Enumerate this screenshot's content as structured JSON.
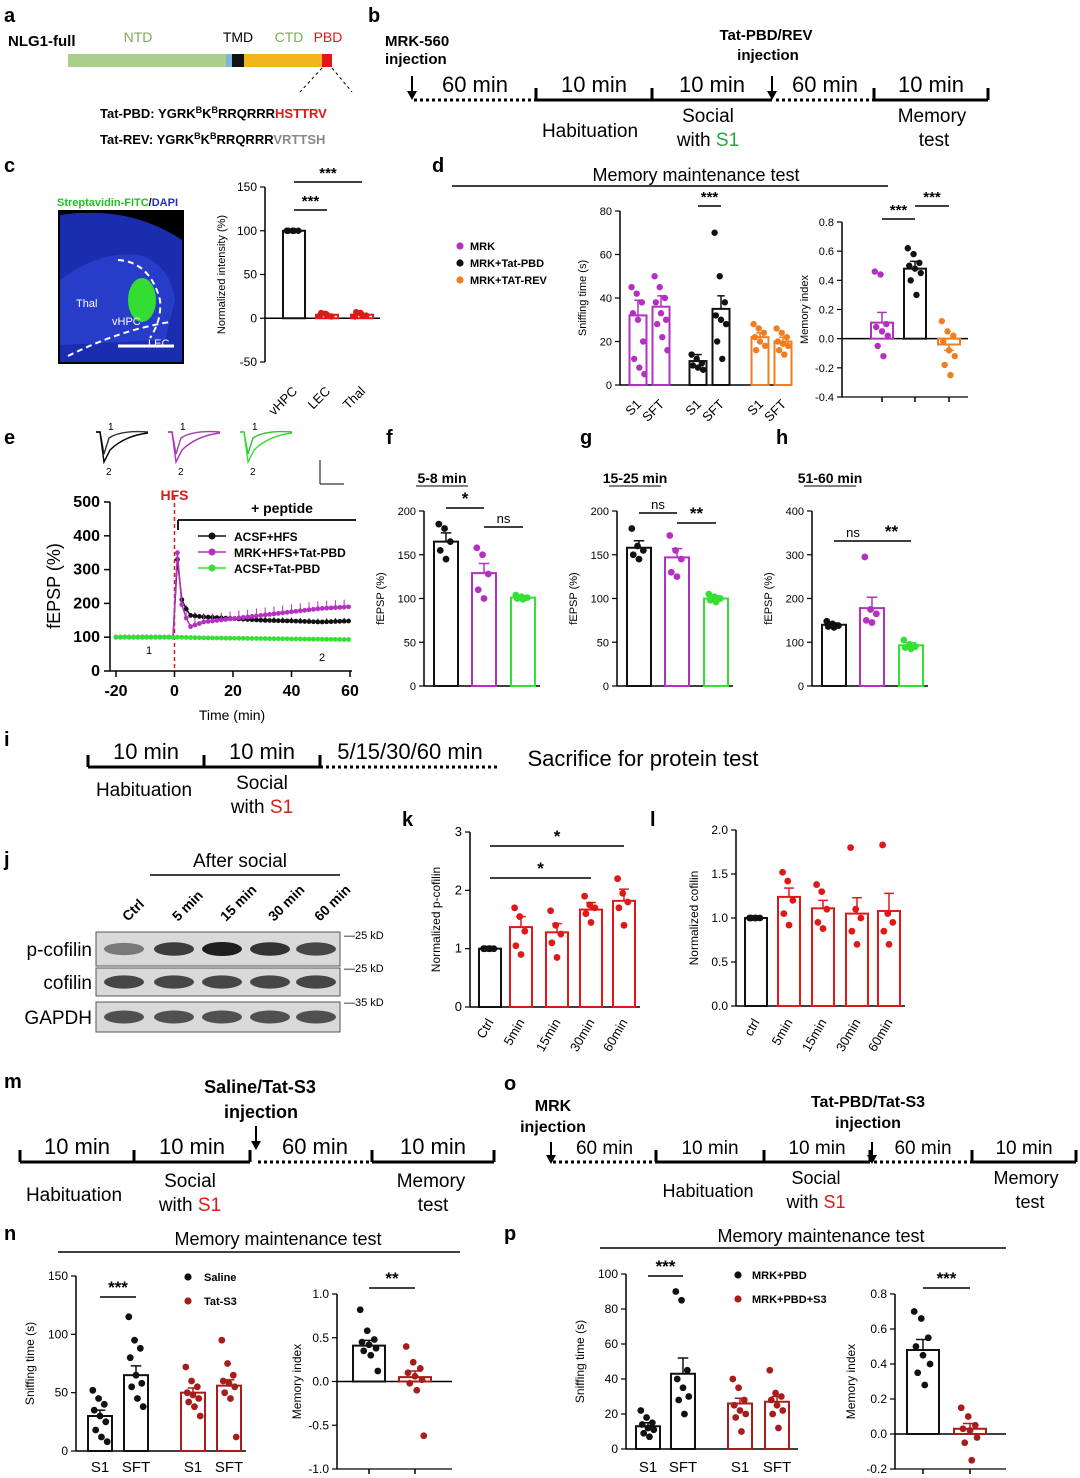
{
  "colors": {
    "black": "#111111",
    "magenta": "#b330c0",
    "orange": "#f07d20",
    "green": "#33e033",
    "red": "#e01818",
    "darkred": "#a81c1c",
    "ntd": "#a9cf8a",
    "tmd_a": "#7fb6dd",
    "tmd_b": "#111111",
    "ctd": "#f2b41e",
    "pbd": "#e3151b",
    "hippo": "#33dd33",
    "dapi": "#1c2fb8",
    "grey": "#888888"
  },
  "panel_a": {
    "letter": "a",
    "construct": "NLG1-full",
    "domains": [
      "NTD",
      "TMD",
      "CTD",
      "PBD"
    ],
    "tat_pbd": {
      "label": "Tat-PBD:",
      "seq_black": "YGRK",
      "sup1": "B",
      "seq_black2": "K",
      "sup2": "B",
      "seq_black3": "RRQRRR",
      "seq_color": "HSTTRV"
    },
    "tat_rev": {
      "label": "Tat-REV:",
      "seq_black": "YGRK",
      "sup1": "B",
      "seq_black2": "K",
      "sup2": "B",
      "seq_black3": "RRQRRR",
      "seq_color": "VRTTSH"
    }
  },
  "panel_b": {
    "letter": "b",
    "inj1": [
      "MRK-560",
      "injection"
    ],
    "inj2": [
      "Tat-PBD/REV",
      "injection"
    ],
    "durations": [
      "60 min",
      "10 min",
      "10 min",
      "60 min",
      "10 min"
    ],
    "habituation": "Habituation",
    "social": "Social",
    "with": "with ",
    "s1": "S1",
    "memory": "Memory",
    "test": "test"
  },
  "panel_c": {
    "letter": "c",
    "stain_green": "Streptavidin-FITC",
    "stain_slash": "/",
    "stain_blue": "DAPI",
    "regions": [
      "Thal",
      "vHPC",
      "LEC"
    ],
    "chart_data": {
      "type": "bar",
      "categories": [
        "vHPC",
        "LEC",
        "Thal"
      ],
      "values": [
        100,
        4,
        4
      ],
      "points": [
        [
          100,
          100,
          100,
          100,
          100
        ],
        [
          3,
          5,
          2,
          6,
          4
        ],
        [
          2,
          6,
          3,
          7,
          4
        ]
      ],
      "ylabel": "Normalized intensity (%)",
      "ylim": [
        -50,
        150
      ],
      "yticks": [
        "-50",
        "0",
        "50",
        "100",
        "150"
      ],
      "annotations": [
        "***",
        "***"
      ]
    }
  },
  "panel_d": {
    "letter": "d",
    "title": "Memory maintenance test",
    "legend": [
      "MRK",
      "MRK+Tat-PBD",
      "MRK+TAT-REV"
    ],
    "chart_data": [
      {
        "type": "bar",
        "ylabel": "Sniffing time (s)",
        "ylim": [
          0,
          80
        ],
        "yticks": [
          "0",
          "20",
          "40",
          "60",
          "80"
        ],
        "categories": [
          "S1",
          "SFT",
          "S1",
          "SFT",
          "S1",
          "SFT"
        ],
        "values": [
          32,
          36,
          11,
          35,
          22,
          20
        ],
        "errors": [
          7,
          5,
          3,
          6,
          2,
          2
        ],
        "points": [
          [
            45,
            42,
            38,
            33,
            30,
            20,
            12,
            8,
            5
          ],
          [
            50,
            45,
            40,
            38,
            33,
            30,
            28,
            22,
            16
          ],
          [
            14,
            12,
            10,
            9,
            8,
            7
          ],
          [
            70,
            50,
            38,
            32,
            30,
            28,
            20,
            12
          ],
          [
            28,
            26,
            24,
            22,
            20,
            18,
            16
          ],
          [
            26,
            24,
            22,
            20,
            19,
            18,
            16,
            14
          ]
        ],
        "annotation": "***"
      },
      {
        "type": "bar",
        "ylabel": "Memory index",
        "ylim": [
          -0.4,
          0.8
        ],
        "yticks": [
          "-0.4",
          "-0.2",
          "0.0",
          "0.2",
          "0.4",
          "0.6",
          "0.8"
        ],
        "categories": [
          "MRK",
          "MRK+Tat-PBD",
          "MRK+TAT-REV"
        ],
        "values": [
          0.11,
          0.48,
          -0.04
        ],
        "errors": [
          0.07,
          0.05,
          0.04
        ],
        "points": [
          [
            0.46,
            0.44,
            0.1,
            0.08,
            0.05,
            0.02,
            -0.05,
            -0.12
          ],
          [
            0.62,
            0.58,
            0.52,
            0.5,
            0.48,
            0.45,
            0.4,
            0.3
          ],
          [
            0.12,
            0.05,
            0.02,
            -0.02,
            -0.08,
            -0.12,
            -0.18,
            -0.25
          ]
        ],
        "annotations": [
          "***",
          "***"
        ]
      }
    ]
  },
  "panel_e": {
    "letter": "e",
    "peptide": "+ peptide",
    "hfs": "HFS",
    "trace_labels": [
      "1",
      "2"
    ],
    "chart_data": {
      "type": "line",
      "xlabel": "Time (min)",
      "ylabel": "fEPSP (%)",
      "xlim": [
        -20,
        60
      ],
      "ylim": [
        0,
        500
      ],
      "xticks": [
        "-20",
        "0",
        "20",
        "40",
        "60"
      ],
      "yticks": [
        "0",
        "100",
        "200",
        "300",
        "400",
        "500"
      ],
      "series": [
        {
          "name": "ACSF+HFS",
          "x": [
            -20,
            -10,
            0,
            1,
            2,
            5,
            10,
            20,
            30,
            40,
            50,
            60
          ],
          "y": [
            100,
            100,
            100,
            330,
            220,
            165,
            160,
            155,
            150,
            148,
            145,
            148
          ]
        },
        {
          "name": "MRK+HFS+Tat-PBD",
          "x": [
            -20,
            -10,
            0,
            1,
            2,
            5,
            10,
            20,
            30,
            40,
            50,
            60
          ],
          "y": [
            100,
            100,
            100,
            350,
            210,
            130,
            145,
            155,
            165,
            175,
            185,
            190
          ]
        },
        {
          "name": "ACSF+Tat-PBD",
          "x": [
            -20,
            -10,
            0,
            1,
            2,
            5,
            10,
            20,
            30,
            40,
            50,
            60
          ],
          "y": [
            100,
            100,
            100,
            100,
            100,
            99,
            98,
            97,
            96,
            95,
            94,
            93
          ]
        }
      ]
    }
  },
  "panel_f": {
    "letter": "f",
    "title": "5-8 min",
    "chart_data": {
      "type": "bar",
      "ylabel": "fEPSP (%)",
      "ylim": [
        0,
        200
      ],
      "yticks": [
        "0",
        "50",
        "100",
        "150",
        "200"
      ],
      "values": [
        165,
        129,
        101
      ],
      "errors": [
        10,
        11,
        2
      ],
      "points": [
        [
          185,
          180,
          165,
          155,
          145
        ],
        [
          158,
          150,
          128,
          110,
          100
        ],
        [
          104,
          102,
          101,
          100,
          99
        ]
      ],
      "annotations": [
        "*",
        "ns"
      ]
    }
  },
  "panel_g": {
    "letter": "g",
    "title": "15-25 min",
    "chart_data": {
      "type": "bar",
      "ylabel": "fEPSP (%)",
      "ylim": [
        0,
        200
      ],
      "yticks": [
        "0",
        "50",
        "100",
        "150",
        "200"
      ],
      "values": [
        158,
        147,
        100
      ],
      "errors": [
        8,
        10,
        3
      ],
      "points": [
        [
          180,
          160,
          155,
          150,
          145
        ],
        [
          172,
          155,
          145,
          130,
          125
        ],
        [
          105,
          102,
          100,
          98,
          96
        ]
      ],
      "annotations": [
        "ns",
        "**"
      ]
    }
  },
  "panel_h": {
    "letter": "h",
    "title": "51-60 min",
    "chart_data": {
      "type": "bar",
      "ylabel": "fEPSP (%)",
      "ylim": [
        0,
        400
      ],
      "yticks": [
        "0",
        "100",
        "200",
        "300",
        "400"
      ],
      "values": [
        140,
        178,
        93
      ],
      "errors": [
        4,
        25,
        6
      ],
      "points": [
        [
          148,
          142,
          138,
          136,
          134
        ],
        [
          295,
          175,
          165,
          150,
          145
        ],
        [
          105,
          95,
          90,
          88,
          85
        ]
      ],
      "annotations": [
        "ns",
        "**"
      ]
    }
  },
  "panel_i": {
    "letter": "i",
    "durations": [
      "10 min",
      "10 min",
      "5/15/30/60 min"
    ],
    "habituation": "Habituation",
    "social": "Social",
    "with": "with ",
    "s1": "S1",
    "sacrifice": "Sacrifice for protein test"
  },
  "panel_j": {
    "letter": "j",
    "after_social": "After social",
    "lanes": [
      "Ctrl",
      "5 min",
      "15 min",
      "30 min",
      "60 min"
    ],
    "rows": [
      "p-cofilin",
      "cofilin",
      "GAPDH"
    ],
    "markers": [
      "—25 kD",
      "—25 kD",
      "—35 kD"
    ],
    "intensity": {
      "p-cofilin": [
        0.55,
        0.85,
        1.0,
        0.9,
        0.8
      ],
      "cofilin": [
        0.8,
        0.8,
        0.8,
        0.8,
        0.8
      ],
      "GAPDH": [
        0.75,
        0.75,
        0.75,
        0.75,
        0.75
      ]
    }
  },
  "panel_k": {
    "letter": "k",
    "chart_data": {
      "type": "bar",
      "ylabel": "Normalized p-cofilin",
      "ylim": [
        0,
        3
      ],
      "yticks": [
        "0",
        "1",
        "2",
        "3"
      ],
      "categories": [
        "Ctrl",
        "5min",
        "15min",
        "30min",
        "60min"
      ],
      "values": [
        1.0,
        1.37,
        1.28,
        1.67,
        1.82
      ],
      "errors": [
        0.0,
        0.18,
        0.15,
        0.12,
        0.2
      ],
      "points": [
        [
          1,
          1,
          1,
          1,
          1
        ],
        [
          1.7,
          1.55,
          1.3,
          1.05,
          0.9
        ],
        [
          1.65,
          1.4,
          1.25,
          1.1,
          0.85
        ],
        [
          1.9,
          1.75,
          1.7,
          1.6,
          1.45
        ],
        [
          2.2,
          1.95,
          1.8,
          1.7,
          1.4
        ]
      ],
      "annotations": [
        "*",
        "*"
      ]
    }
  },
  "panel_l": {
    "letter": "l",
    "chart_data": {
      "type": "bar",
      "ylabel": "Normalized cofilin",
      "ylim": [
        0,
        2.0
      ],
      "yticks": [
        "0.0",
        "0.5",
        "1.0",
        "1.5",
        "2.0"
      ],
      "categories": [
        "ctrl",
        "5min",
        "15min",
        "30min",
        "60min"
      ],
      "values": [
        1.0,
        1.24,
        1.11,
        1.05,
        1.08
      ],
      "errors": [
        0.0,
        0.1,
        0.09,
        0.18,
        0.2
      ],
      "points": [
        [
          1,
          1,
          1,
          1,
          1
        ],
        [
          1.52,
          1.42,
          1.2,
          1.05,
          0.92
        ],
        [
          1.38,
          1.3,
          1.1,
          0.95,
          0.88
        ],
        [
          1.8,
          1.1,
          1.0,
          0.85,
          0.7
        ],
        [
          1.83,
          1.05,
          0.95,
          0.85,
          0.7
        ]
      ]
    }
  },
  "panel_m": {
    "letter": "m",
    "inj": [
      "Saline/Tat-S3",
      "injection"
    ],
    "durations": [
      "10 min",
      "10 min",
      "60 min",
      "10 min"
    ],
    "habituation": "Habituation",
    "social": "Social",
    "with": "with ",
    "s1": "S1",
    "memory": "Memory",
    "test": "test"
  },
  "panel_n": {
    "letter": "n",
    "title": "Memory maintenance test",
    "legend": [
      "Saline",
      "Tat-S3"
    ],
    "chart_data": [
      {
        "type": "bar",
        "ylabel": "Sniffing time (s)",
        "ylim": [
          0,
          150
        ],
        "yticks": [
          "0",
          "50",
          "100",
          "150"
        ],
        "categories": [
          "S1",
          "SFT",
          "S1",
          "SFT"
        ],
        "values": [
          30,
          65,
          50,
          56
        ],
        "errors": [
          5,
          8,
          4,
          5
        ],
        "points": [
          [
            52,
            45,
            40,
            35,
            30,
            25,
            18,
            12,
            8
          ],
          [
            115,
            95,
            88,
            80,
            65,
            58,
            55,
            45,
            38
          ],
          [
            72,
            60,
            55,
            50,
            48,
            45,
            42,
            38,
            30
          ],
          [
            95,
            75,
            65,
            60,
            58,
            55,
            50,
            45,
            12
          ]
        ],
        "annotation": "***"
      },
      {
        "type": "bar",
        "ylabel": "Memory index",
        "ylim": [
          -1.0,
          1.0
        ],
        "yticks": [
          "-1.0",
          "-0.5",
          "0.0",
          "0.5",
          "1.0"
        ],
        "categories": [
          "Saline",
          "Tat-S3"
        ],
        "values": [
          0.41,
          0.05
        ],
        "errors": [
          0.06,
          0.07
        ],
        "points": [
          [
            0.82,
            0.58,
            0.48,
            0.45,
            0.42,
            0.38,
            0.35,
            0.3,
            0.12
          ],
          [
            0.4,
            0.22,
            0.15,
            0.1,
            0.06,
            0.02,
            -0.02,
            -0.1,
            -0.62
          ]
        ],
        "annotation": "**"
      }
    ]
  },
  "panel_o": {
    "letter": "o",
    "inj1": [
      "MRK",
      "injection"
    ],
    "inj2": [
      "Tat-PBD/Tat-S3",
      "injection"
    ],
    "durations": [
      "60 min",
      "10 min",
      "10 min",
      "60 min",
      "10 min"
    ],
    "habituation": "Habituation",
    "social": "Social",
    "with": "with ",
    "s1": "S1",
    "memory": "Memory",
    "test": "test"
  },
  "panel_p": {
    "letter": "p",
    "title": "Memory maintenance test",
    "legend": [
      "MRK+PBD",
      "MRK+PBD+S3"
    ],
    "chart_data": [
      {
        "type": "bar",
        "ylabel": "Sniffing time (s)",
        "ylim": [
          0,
          100
        ],
        "yticks": [
          "0",
          "20",
          "40",
          "60",
          "80",
          "100"
        ],
        "categories": [
          "S1",
          "SFT",
          "S1",
          "SFT"
        ],
        "values": [
          13,
          43,
          26,
          27
        ],
        "errors": [
          2,
          9,
          3,
          3
        ],
        "points": [
          [
            22,
            18,
            15,
            14,
            12,
            11,
            9,
            7
          ],
          [
            90,
            85,
            45,
            40,
            35,
            30,
            28,
            20
          ],
          [
            40,
            35,
            28,
            25,
            22,
            20,
            18,
            10
          ],
          [
            45,
            32,
            30,
            28,
            25,
            22,
            20,
            12
          ]
        ],
        "annotation": "***"
      },
      {
        "type": "bar",
        "ylabel": "Memory index",
        "ylim": [
          -0.2,
          0.8
        ],
        "yticks": [
          "-0.2",
          "0.0",
          "0.2",
          "0.4",
          "0.6",
          "0.8"
        ],
        "categories": [
          "MRK+PBD",
          "MRK+PBD+S3"
        ],
        "values": [
          0.48,
          0.03
        ],
        "errors": [
          0.06,
          0.03
        ],
        "points": [
          [
            0.7,
            0.66,
            0.55,
            0.5,
            0.45,
            0.4,
            0.35,
            0.28
          ],
          [
            0.15,
            0.1,
            0.05,
            0.03,
            0.02,
            -0.02,
            -0.05,
            -0.15
          ]
        ],
        "annotation": "***"
      }
    ]
  }
}
